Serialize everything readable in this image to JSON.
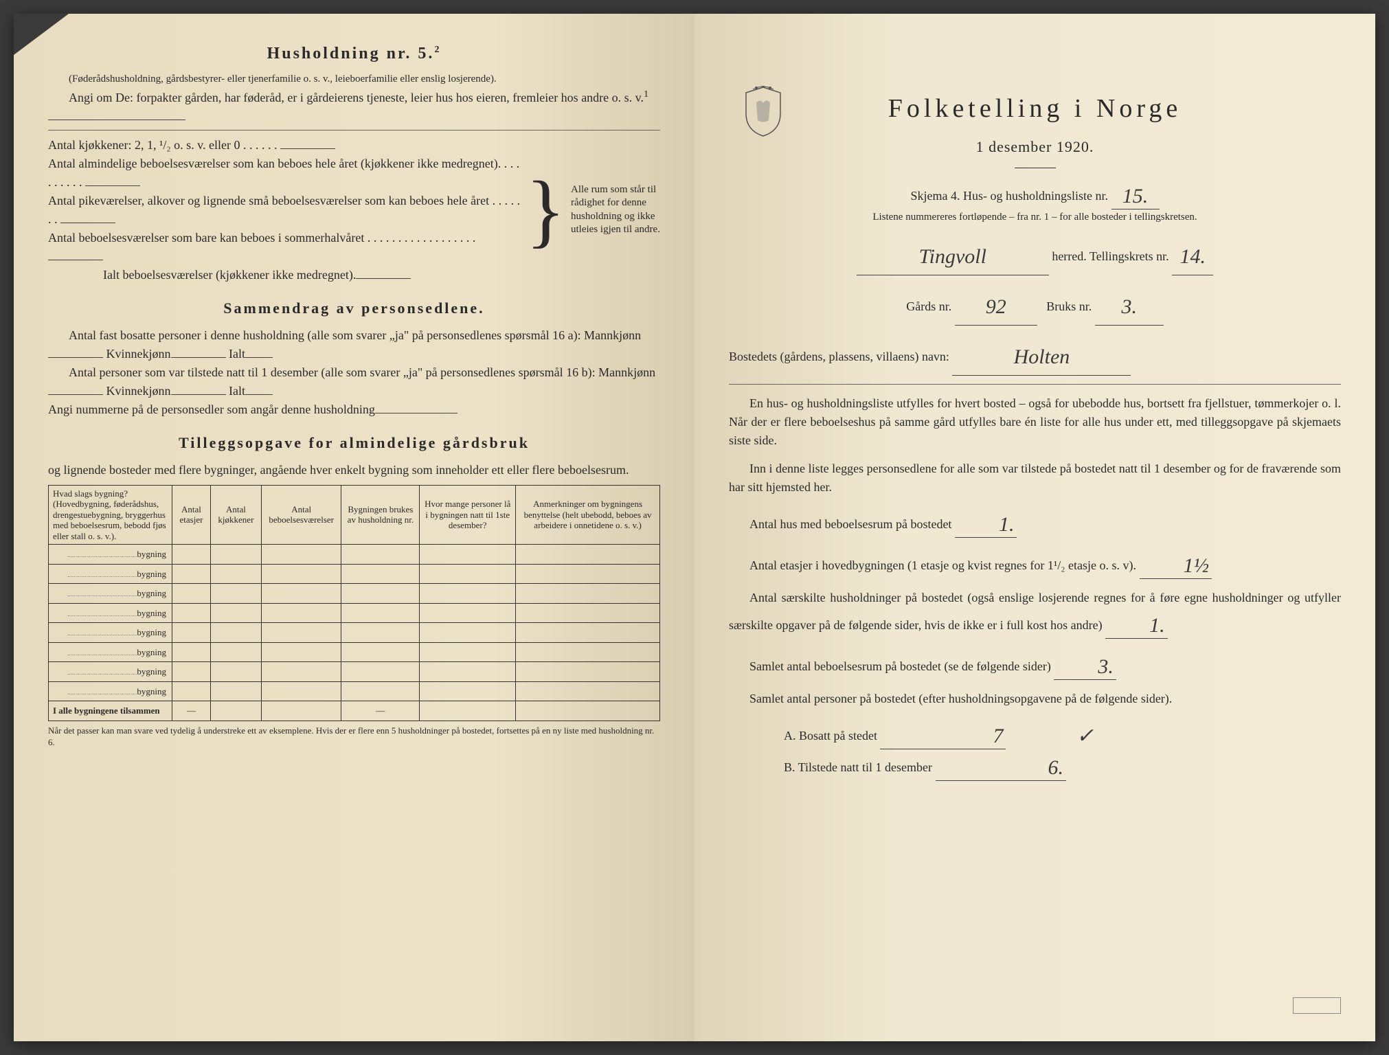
{
  "left": {
    "heading": "Husholdning nr. 5.",
    "heading_sup": "2",
    "sub_note": "(Føderådshusholdning, gårdsbestyrer- eller tjenerfamilie o. s. v., leieboerfamilie eller enslig losjerende).",
    "angi_line": "Angi om De: forpakter gården, har føderåd, er i gårdeierens tjeneste, leier hus hos eieren, fremleier hos andre o. s. v.",
    "angi_sup": "1",
    "kitchens_label": "Antal kjøkkener: 2, 1, ¹/₂ o. s. v. eller 0",
    "rooms1": "Antal almindelige beboelsesværelser som kan beboes hele året (kjøkkener ikke medregnet).",
    "rooms2": "Antal pikeværelser, alkover og lignende små beboelsesværelser som kan beboes hele året",
    "rooms3": "Antal beboelsesværelser som bare kan beboes i sommerhalvåret",
    "rooms_total": "Ialt beboelsesværelser  (kjøkkener ikke medregnet).",
    "brace_text": "Alle rum som står til rådighet for denne husholdning og ikke utleies igjen til andre.",
    "summary_title": "Sammendrag av personsedlene.",
    "summary_l1a": "Antal fast bosatte personer i denne husholdning (alle som svarer „ja\" på personsedlenes spørsmål 16 a): Mannkjønn",
    "kvinne": "Kvinnekjønn",
    "ialt": "Ialt",
    "summary_l2a": "Antal personer som var tilstede natt til 1 desember (alle som svarer „ja\" på personsedlenes spørsmål 16 b): Mannkjønn",
    "summary_l3": "Angi nummerne på de personsedler som angår denne husholdning",
    "tillegg_title": "Tilleggsopgave for almindelige gårdsbruk",
    "tillegg_sub": "og lignende bosteder med flere bygninger, angående hver enkelt bygning som inneholder ett eller flere beboelsesrum.",
    "table": {
      "cols": [
        "Hvad slags bygning?\n(Hovedbygning, føderådshus, drengestuebygning, bryggerhus med beboelsesrum, bebodd fjøs eller stall o. s. v.).",
        "Antal etasjer",
        "Antal kjøkkener",
        "Antal beboelsesværelser",
        "Bygningen brukes av husholdning nr.",
        "Hvor mange personer lå i bygningen natt til 1ste desember?",
        "Anmerkninger om bygningens benyttelse (helt ubebodd, beboes av arbeidere i onnetidene o. s. v.)"
      ],
      "row_label": "bygning",
      "rows": 8,
      "total_label": "I alle bygningene tilsammen"
    },
    "footnote": "Når det passer kan man svare ved tydelig å understreke ett av eksemplene.\nHvis der er flere enn 5 husholdninger på bostedet, fortsettes på en ny liste med husholdning nr. 6."
  },
  "right": {
    "title": "Folketelling i Norge",
    "date": "1 desember 1920.",
    "skjema": "Skjema 4.   Hus- og husholdningsliste nr.",
    "liste_nr": "15.",
    "listene": "Listene nummereres fortløpende – fra nr. 1 – for alle bosteder i tellingskretsen.",
    "herred_value": "Tingvoll",
    "herred_label": "herred.   Tellingskrets nr.",
    "krets_nr": "14.",
    "gards_label": "Gårds nr.",
    "gards_nr": "92",
    "bruks_label": "Bruks nr.",
    "bruks_nr": "3.",
    "bosted_label": "Bostedets (gårdens, plassens, villaens) navn:",
    "bosted_value": "Holten",
    "para1": "En hus- og husholdningsliste utfylles for hvert bosted – også for ubebodde hus, bortsett fra fjellstuer, tømmerkojer o. l.  Når der er flere beboelseshus på samme gård utfylles bare én liste for alle hus under ett, med tilleggsopgave på skjemaets siste side.",
    "para2": "Inn i denne liste legges personsedlene for alle som var tilstede på bostedet natt til 1 desember og for de fraværende som har sitt hjemsted her.",
    "q1": "Antal hus med beboelsesrum på bostedet",
    "q1_val": "1.",
    "q2": "Antal etasjer i hovedbygningen (1 etasje og kvist regnes for 1¹/₂ etasje o. s. v).",
    "q2_val": "1½",
    "q3": "Antal særskilte husholdninger på bostedet (også enslige losjerende regnes for å føre egne husholdninger og utfyller særskilte opgaver på de følgende sider, hvis de ikke er i full kost hos andre)",
    "q3_val": "1.",
    "q4": "Samlet antal beboelsesrum på bostedet (se de følgende sider)",
    "q4_val": "3.",
    "q5": "Samlet antal personer på bostedet (efter husholdningsopgavene på de følgende sider).",
    "qA": "A.  Bosatt på stedet",
    "qA_val": "7",
    "qB": "B.  Tilstede natt til 1 desember",
    "qB_val": "6."
  },
  "colors": {
    "ink": "#2a2a2a",
    "hand": "#3a3a3a",
    "paper_left": "#ede2c8",
    "paper_right": "#f2ead5"
  }
}
